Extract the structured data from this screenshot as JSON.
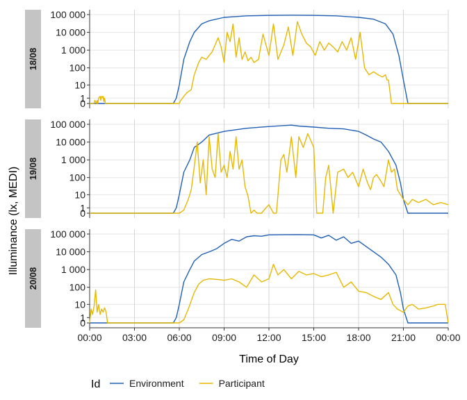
{
  "chart_data": {
    "type": "line",
    "xlabel": "Time of Day",
    "ylabel": "Illuminance (lx, MEDI)",
    "x_unit": "hours",
    "xlim": [
      0,
      24
    ],
    "x_tick_values": [
      0,
      3,
      6,
      9,
      12,
      15,
      18,
      21,
      24
    ],
    "x_tick_labels": [
      "00:00",
      "03:00",
      "06:00",
      "09:00",
      "12:00",
      "15:00",
      "18:00",
      "21:00",
      "00:00"
    ],
    "y_scale": "symlog",
    "ylim": [
      0,
      100000
    ],
    "y_tick_values": [
      0,
      1,
      10,
      100,
      1000,
      10000,
      100000
    ],
    "y_tick_labels": [
      "0",
      "1",
      "10",
      "100",
      "1 000",
      "10 000",
      "100 000"
    ],
    "grid": true,
    "legend": {
      "title": "Id",
      "position": "bottom",
      "entries": [
        {
          "name": "Environment",
          "color": "#1f5fb4"
        },
        {
          "name": "Participant",
          "color": "#e6b800"
        }
      ]
    },
    "panels": [
      {
        "label": "18/08",
        "series": [
          {
            "name": "Environment",
            "color": "#1f5fb4",
            "x": [
              0,
              5.6,
              5.8,
              6.0,
              6.3,
              6.7,
              7.0,
              7.5,
              8.0,
              9.0,
              10.5,
              12.0,
              13.5,
              15.0,
              16.5,
              18.0,
              19.0,
              19.8,
              20.3,
              20.7,
              21.0,
              21.3,
              24
            ],
            "y": [
              0,
              0,
              1,
              10,
              300,
              3000,
              10000,
              30000,
              45000,
              70000,
              85000,
              90000,
              92000,
              90000,
              85000,
              70000,
              55000,
              30000,
              8000,
              500,
              20,
              0,
              0
            ]
          },
          {
            "name": "Participant",
            "color": "#e6b800",
            "x": [
              0,
              0.3,
              0.35,
              0.45,
              0.5,
              0.55,
              0.6,
              0.7,
              0.75,
              0.8,
              0.85,
              0.9,
              0.95,
              1.0,
              1.05,
              1.3,
              6.0,
              6.1,
              6.3,
              6.5,
              6.8,
              7.0,
              7.3,
              7.5,
              7.8,
              8.0,
              8.2,
              8.4,
              8.6,
              8.8,
              9.0,
              9.2,
              9.4,
              9.6,
              9.8,
              10.0,
              10.2,
              10.4,
              10.6,
              10.8,
              11.0,
              11.3,
              11.6,
              12.0,
              12.3,
              12.6,
              13.0,
              13.3,
              13.6,
              13.9,
              14.2,
              14.5,
              14.8,
              15.1,
              15.4,
              15.7,
              16.0,
              16.3,
              16.6,
              16.9,
              17.2,
              17.5,
              17.8,
              18.1,
              18.4,
              18.7,
              19.0,
              19.3,
              19.6,
              19.8,
              19.9,
              20.0,
              20.2,
              20.4,
              24
            ],
            "y": [
              0,
              0,
              0.5,
              0,
              0.5,
              0,
              1,
              1.5,
              0.5,
              1.5,
              1.2,
              1.5,
              0.3,
              1.0,
              0,
              0,
              0,
              0.5,
              1.5,
              3,
              5,
              40,
              200,
              400,
              300,
              500,
              800,
              2000,
              5000,
              1500,
              200,
              10000,
              3000,
              30000,
              400,
              5000,
              300,
              800,
              250,
              400,
              200,
              300,
              8000,
              500,
              30000,
              300,
              2000,
              20000,
              500,
              40000,
              8000,
              2500,
              1500,
              500,
              3000,
              1000,
              2500,
              1500,
              800,
              3000,
              1000,
              5000,
              300,
              10000,
              100,
              40,
              60,
              40,
              30,
              40,
              20,
              20,
              0,
              0,
              0
            ]
          }
        ]
      },
      {
        "label": "19/08",
        "series": [
          {
            "name": "Environment",
            "color": "#1f5fb4",
            "x": [
              0,
              5.6,
              5.8,
              6.0,
              6.3,
              6.7,
              7.0,
              7.5,
              8.0,
              9.0,
              10.5,
              12.0,
              13.0,
              13.5,
              14.0,
              15.0,
              16.0,
              17.0,
              18.0,
              18.5,
              19.0,
              19.5,
              20.0,
              20.5,
              20.8,
              21.0,
              21.3,
              24
            ],
            "y": [
              0,
              0,
              1,
              10,
              200,
              1000,
              5000,
              10000,
              25000,
              40000,
              60000,
              75000,
              85000,
              90000,
              80000,
              70000,
              60000,
              55000,
              40000,
              25000,
              15000,
              10000,
              3000,
              500,
              50,
              5,
              0,
              0
            ]
          },
          {
            "name": "Participant",
            "color": "#e6b800",
            "x": [
              0,
              6.0,
              6.3,
              6.6,
              6.8,
              7.0,
              7.2,
              7.4,
              7.6,
              7.8,
              8.0,
              8.2,
              8.4,
              8.6,
              8.8,
              9.0,
              9.2,
              9.4,
              9.6,
              9.8,
              10.0,
              10.2,
              10.4,
              10.6,
              10.8,
              11.0,
              11.2,
              11.5,
              11.8,
              12.0,
              12.3,
              12.5,
              12.8,
              13.0,
              13.2,
              13.5,
              13.8,
              14.0,
              14.3,
              14.6,
              15.0,
              15.2,
              15.4,
              15.6,
              15.8,
              16.0,
              16.3,
              16.6,
              17.0,
              17.3,
              17.6,
              18.0,
              18.3,
              18.6,
              18.8,
              19.0,
              19.2,
              19.5,
              19.7,
              20.0,
              20.2,
              20.4,
              20.6,
              20.8,
              21.0,
              21.3,
              21.6,
              22.0,
              22.5,
              23.0,
              23.5,
              24.0
            ],
            "y": [
              0,
              0,
              0.5,
              5,
              20,
              400,
              10000,
              50,
              1000,
              10,
              20000,
              300,
              100,
              30000,
              200,
              500,
              100,
              3000,
              300,
              20000,
              300,
              1000,
              30,
              8,
              0,
              0.5,
              0,
              0,
              1,
              2,
              0,
              0,
              1000,
              2000,
              200,
              20000,
              100,
              20000,
              5000,
              30000,
              5000,
              0,
              0,
              0,
              100,
              500,
              0,
              200,
              300,
              100,
              200,
              30,
              300,
              50,
              20,
              100,
              150,
              60,
              30,
              1000,
              200,
              300,
              20,
              10,
              5,
              2,
              5,
              3,
              5,
              2,
              3,
              2
            ]
          }
        ]
      },
      {
        "label": "20/08",
        "series": [
          {
            "name": "Environment",
            "color": "#1f5fb4",
            "x": [
              0,
              5.6,
              5.8,
              6.0,
              6.3,
              6.7,
              7.0,
              7.5,
              8.0,
              8.5,
              9.0,
              9.5,
              10.0,
              10.5,
              11.0,
              11.5,
              12.0,
              13.0,
              14.0,
              15.0,
              15.5,
              16.0,
              16.5,
              17.0,
              17.5,
              18.0,
              18.5,
              19.0,
              19.5,
              20.0,
              20.5,
              20.8,
              21.0,
              21.3,
              24
            ],
            "y": [
              0,
              0,
              1,
              10,
              200,
              1000,
              3000,
              7000,
              10000,
              15000,
              30000,
              50000,
              40000,
              70000,
              80000,
              75000,
              90000,
              92000,
              93000,
              90000,
              60000,
              85000,
              45000,
              70000,
              30000,
              40000,
              20000,
              10000,
              5000,
              2000,
              500,
              50,
              5,
              0,
              0
            ]
          },
          {
            "name": "Participant",
            "color": "#e6b800",
            "x": [
              0,
              0.1,
              0.2,
              0.3,
              0.4,
              0.5,
              0.6,
              0.7,
              0.8,
              0.9,
              1.0,
              1.1,
              1.2,
              6.0,
              6.3,
              6.6,
              7.0,
              7.3,
              7.6,
              8.0,
              8.5,
              9.0,
              9.5,
              10.0,
              10.5,
              11.0,
              11.5,
              12.0,
              12.3,
              12.6,
              13.0,
              13.5,
              14.0,
              14.5,
              15.0,
              15.5,
              16.0,
              16.5,
              17.0,
              17.5,
              18.0,
              18.5,
              19.0,
              19.5,
              20.0,
              20.3,
              20.6,
              21.0,
              21.3,
              21.6,
              22.0,
              22.5,
              23.0,
              23.3,
              23.6,
              23.8,
              24.0
            ],
            "y": [
              0,
              5,
              2,
              8,
              70,
              3,
              10,
              2,
              5,
              3,
              6,
              3,
              0,
              0,
              0.5,
              5,
              50,
              150,
              250,
              300,
              280,
              250,
              300,
              200,
              100,
              500,
              200,
              300,
              2000,
              500,
              1000,
              300,
              800,
              500,
              600,
              400,
              500,
              700,
              100,
              200,
              60,
              50,
              30,
              20,
              50,
              10,
              5,
              3,
              8,
              10,
              5,
              6,
              8,
              10,
              10,
              10,
              0
            ]
          }
        ]
      }
    ]
  }
}
